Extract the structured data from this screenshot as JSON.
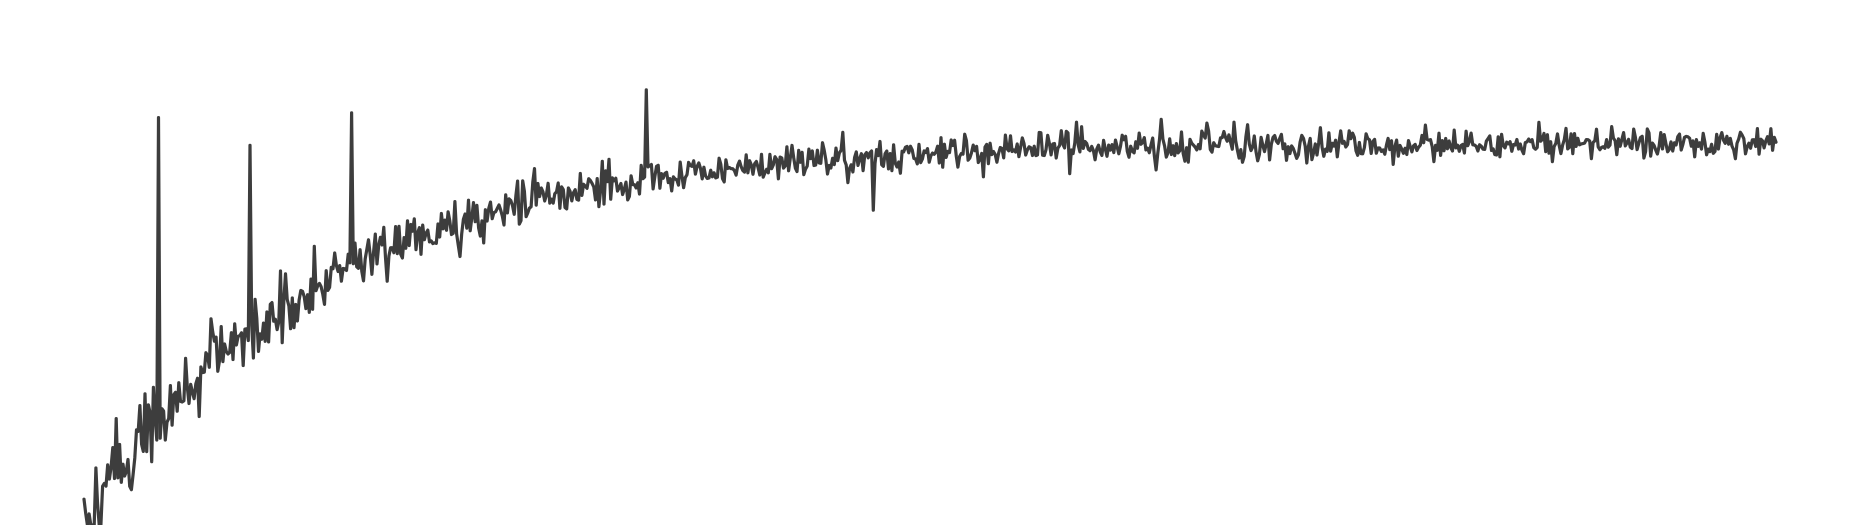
{
  "chart_data": {
    "type": "line",
    "title": "",
    "xlabel": "",
    "ylabel": "",
    "x_range": [
      0,
      1000
    ],
    "ylim": [
      0,
      1.0
    ],
    "grid": false,
    "legend": "none",
    "axes_visible": false,
    "series": [
      {
        "color": "#3d3d3d",
        "trend": {
          "form": "saturating",
          "plateau": 0.825,
          "start": 0.0,
          "rate_per_x": 0.0072
        },
        "noise_amplitude_early": 0.09,
        "noise_amplitude_late": 0.03,
        "points": 1000,
        "notable_peaks": [
          {
            "x": 44,
            "y": 0.88
          },
          {
            "x": 98,
            "y": 0.82
          },
          {
            "x": 158,
            "y": 0.89
          },
          {
            "x": 332,
            "y": 0.94
          },
          {
            "x": 587,
            "y": 0.87
          },
          {
            "x": 680,
            "y": 0.87
          }
        ],
        "notable_dips": [
          {
            "x": 2,
            "y": 0.0
          },
          {
            "x": 60,
            "y": 0.36
          },
          {
            "x": 222,
            "y": 0.58
          },
          {
            "x": 466,
            "y": 0.68
          }
        ]
      }
    ]
  }
}
